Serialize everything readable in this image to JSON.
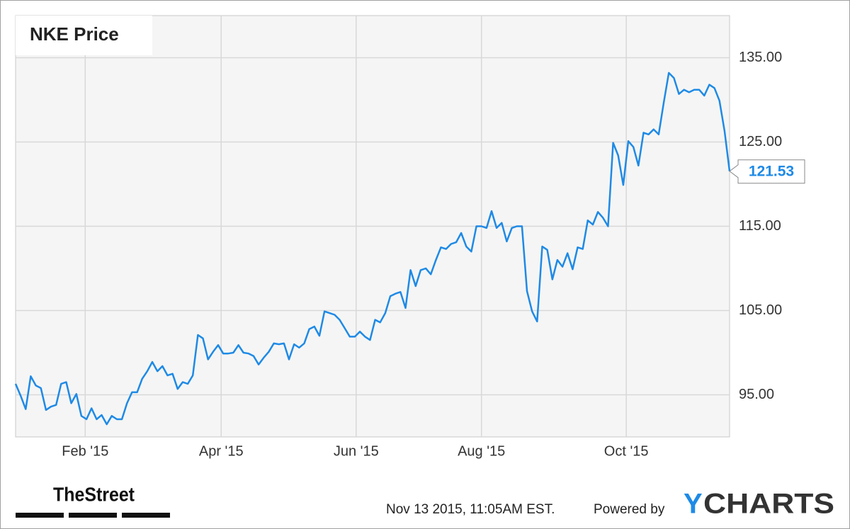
{
  "chart_data": {
    "type": "line",
    "title": "NKE Price",
    "series": [
      {
        "name": "NKE",
        "color": "#1e8ae6",
        "values": [
          96.3,
          94.9,
          93.3,
          97.2,
          96.1,
          95.8,
          93.2,
          93.6,
          93.8,
          96.3,
          96.5,
          94.0,
          95.1,
          92.5,
          92.1,
          93.4,
          92.1,
          92.6,
          91.5,
          92.5,
          92.1,
          92.1,
          94.0,
          95.3,
          95.3,
          96.9,
          97.8,
          98.9,
          97.8,
          98.4,
          97.3,
          97.5,
          95.7,
          96.5,
          96.3,
          97.3,
          102.1,
          101.7,
          99.2,
          100.1,
          100.9,
          99.9,
          99.9,
          100.0,
          100.9,
          100.0,
          99.9,
          99.6,
          98.6,
          99.4,
          100.1,
          101.1,
          101.0,
          101.1,
          99.2,
          101.0,
          100.6,
          101.1,
          102.8,
          103.1,
          102.0,
          104.9,
          104.7,
          104.5,
          103.9,
          102.9,
          101.9,
          101.9,
          102.5,
          101.9,
          101.5,
          103.9,
          103.6,
          104.7,
          106.7,
          107.0,
          107.2,
          105.3,
          109.8,
          107.9,
          109.8,
          110.0,
          109.3,
          111.0,
          112.5,
          112.3,
          112.9,
          113.1,
          114.2,
          112.6,
          112.0,
          115.0,
          115.0,
          114.8,
          116.8,
          114.8,
          115.4,
          113.2,
          114.8,
          115.0,
          115.0,
          107.3,
          104.9,
          103.7,
          112.6,
          112.2,
          108.7,
          111.0,
          110.2,
          111.8,
          109.9,
          112.5,
          112.3,
          115.7,
          115.2,
          116.7,
          116.0,
          115.0,
          124.9,
          123.4,
          119.9,
          125.1,
          124.4,
          122.2,
          126.1,
          125.9,
          126.5,
          125.9,
          129.7,
          133.2,
          132.6,
          130.7,
          131.2,
          130.9,
          131.2,
          131.2,
          130.5,
          131.8,
          131.4,
          129.9,
          126.3,
          121.53
        ]
      }
    ],
    "xlim": [
      0,
      141
    ],
    "xticks": [
      {
        "value": 13.75,
        "label": "Feb '15"
      },
      {
        "value": 40.6,
        "label": "Apr '15"
      },
      {
        "value": 67.25,
        "label": "Jun '15"
      },
      {
        "value": 92,
        "label": "Aug '15"
      },
      {
        "value": 120.6,
        "label": "Oct '15"
      }
    ],
    "ylim": [
      90,
      140
    ],
    "yticks": [
      {
        "value": 95,
        "label": "95.00"
      },
      {
        "value": 105,
        "label": "105.00"
      },
      {
        "value": 115,
        "label": "115.00"
      },
      {
        "value": 125,
        "label": "125.00"
      },
      {
        "value": 135,
        "label": "135.00"
      }
    ],
    "grid": true
  },
  "footer": {
    "source": "TheStreet",
    "timestamp": "Nov 13 2015, 11:05AM EST.",
    "powered_by": "Powered by",
    "brand_y": "Y",
    "brand_rest": "CHARTS"
  }
}
